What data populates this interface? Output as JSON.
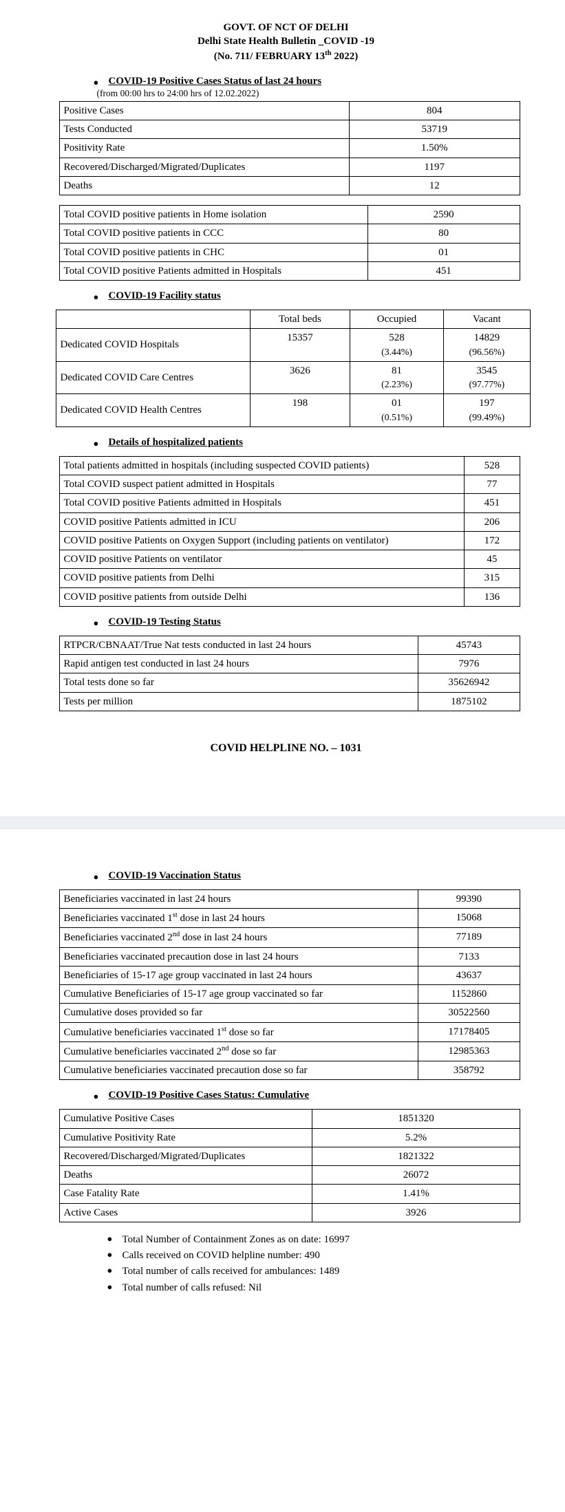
{
  "header": {
    "line1": "GOVT. OF NCT OF DELHI",
    "line2": "Delhi State Health Bulletin _COVID -19",
    "line3_pre": "(No. 711/ FEBRUARY 13",
    "line3_sup": "th",
    "line3_post": " 2022)"
  },
  "s1": {
    "title": "COVID-19 Positive Cases Status of last 24 hours",
    "subnote": "(from 00:00 hrs to 24:00 hrs of 12.02.2022)",
    "rows": [
      {
        "k": "Positive Cases",
        "v": "804"
      },
      {
        "k": "Tests Conducted",
        "v": "53719"
      },
      {
        "k": "Positivity Rate",
        "v": "1.50%"
      },
      {
        "k": "Recovered/Discharged/Migrated/Duplicates",
        "v": "1197"
      },
      {
        "k": "Deaths",
        "v": "12"
      }
    ]
  },
  "s1b": {
    "rows": [
      {
        "k": "Total COVID positive patients in Home isolation",
        "v": "2590"
      },
      {
        "k": "Total COVID positive patients in CCC",
        "v": "80"
      },
      {
        "k": "Total COVID positive patients in CHC",
        "v": "01"
      },
      {
        "k": "Total COVID positive Patients admitted in Hospitals",
        "v": "451"
      }
    ]
  },
  "s2": {
    "title": "COVID-19 Facility status",
    "head": {
      "c1": "",
      "c2": "Total beds",
      "c3": "Occupied",
      "c4": "Vacant"
    },
    "rows": [
      {
        "k": "Dedicated COVID Hospitals",
        "tb": "15357",
        "occ": "528",
        "occp": "(3.44%)",
        "vac": "14829",
        "vacp": "(96.56%)"
      },
      {
        "k": "Dedicated COVID Care Centres",
        "tb": "3626",
        "occ": "81",
        "occp": "(2.23%)",
        "vac": "3545",
        "vacp": "(97.77%)"
      },
      {
        "k": "Dedicated COVID Health Centres",
        "tb": "198",
        "occ": "01",
        "occp": "(0.51%)",
        "vac": "197",
        "vacp": "(99.49%)"
      }
    ]
  },
  "s3": {
    "title": "Details of hospitalized patients",
    "rows": [
      {
        "k": "Total patients admitted in hospitals (including suspected COVID patients)",
        "v": "528"
      },
      {
        "k": "Total COVID suspect patient admitted in Hospitals",
        "v": "77"
      },
      {
        "k": "Total COVID positive Patients admitted in Hospitals",
        "v": "451"
      },
      {
        "k": "COVID positive Patients admitted in ICU",
        "v": "206"
      },
      {
        "k": "COVID positive Patients on Oxygen Support (including patients on ventilator)",
        "v": "172"
      },
      {
        "k": "COVID positive Patients on ventilator",
        "v": "45"
      },
      {
        "k": "COVID positive patients from Delhi",
        "v": "315"
      },
      {
        "k": "COVID positive patients from outside Delhi",
        "v": "136"
      }
    ]
  },
  "s4": {
    "title": "COVID-19 Testing Status",
    "rows": [
      {
        "k": "RTPCR/CBNAAT/True Nat tests conducted in last 24 hours",
        "v": "45743"
      },
      {
        "k": "Rapid antigen test conducted in last 24 hours",
        "v": "7976"
      },
      {
        "k": "Total tests done so far",
        "v": "35626942"
      },
      {
        "k": "Tests per million",
        "v": "1875102"
      }
    ]
  },
  "helpline": "COVID HELPLINE NO. – 1031",
  "s5": {
    "title": "COVID-19 Vaccination Status",
    "rows": [
      {
        "k": "Beneficiaries vaccinated in last 24 hours",
        "v": "99390"
      },
      {
        "k_pre": "Beneficiaries vaccinated 1",
        "k_sup": "st",
        "k_post": " dose in last 24 hours",
        "v": "15068"
      },
      {
        "k_pre": "Beneficiaries vaccinated 2",
        "k_sup": "nd",
        "k_post": " dose in last 24 hours",
        "v": "77189"
      },
      {
        "k": "Beneficiaries vaccinated precaution dose in last 24 hours",
        "v": "7133"
      },
      {
        "k": "Beneficiaries of 15-17 age group vaccinated in last 24 hours",
        "v": "43637"
      },
      {
        "k": "Cumulative Beneficiaries of 15-17 age group vaccinated so far",
        "v": "1152860"
      },
      {
        "k": "Cumulative doses provided so far",
        "v": "30522560"
      },
      {
        "k_pre": "Cumulative beneficiaries vaccinated 1",
        "k_sup": "st",
        "k_post": " dose so far",
        "v": "17178405"
      },
      {
        "k_pre": "Cumulative beneficiaries vaccinated 2",
        "k_sup": "nd",
        "k_post": " dose so far",
        "v": "12985363"
      },
      {
        "k": "Cumulative beneficiaries vaccinated precaution dose so far",
        "v": "358792"
      }
    ]
  },
  "s6": {
    "title": "COVID-19 Positive Cases Status: Cumulative",
    "rows": [
      {
        "k": "Cumulative Positive Cases",
        "v": "1851320"
      },
      {
        "k": "Cumulative Positivity Rate",
        "v": "5.2%"
      },
      {
        "k": "Recovered/Discharged/Migrated/Duplicates",
        "v": "1821322"
      },
      {
        "k": "Deaths",
        "v": "26072"
      },
      {
        "k": "Case Fatality Rate",
        "v": "1.41%"
      },
      {
        "k": "Active Cases",
        "v": "3926"
      }
    ]
  },
  "footer": [
    "Total Number of Containment Zones as on date: 16997",
    "Calls received on COVID helpline number: 490",
    "Total number of calls received for ambulances: 1489",
    "Total number of calls refused: Nil"
  ]
}
